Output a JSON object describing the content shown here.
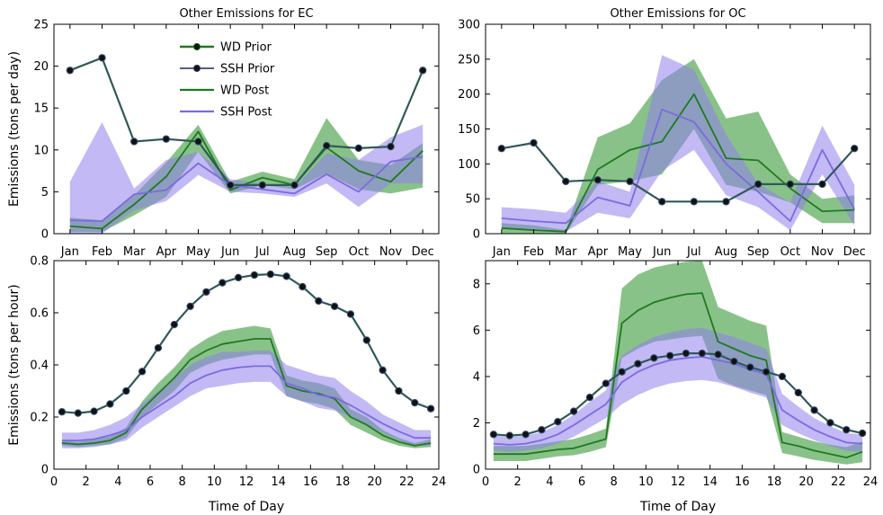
{
  "colors": {
    "wd": "#1e7a1e",
    "wd_band": "#3a9a3a",
    "ssh": "#7b6ae0",
    "ssh_band": "#8f80ec",
    "prior_line": "#3a4a7a",
    "marker": "#111111"
  },
  "legend": [
    "WD Prior",
    "SSH Prior",
    "WD Post",
    "SSH Post"
  ],
  "chart_data": [
    {
      "type": "line",
      "title": "Other Emissions for EC",
      "ylabel": "Emissions (tons per day)",
      "xlabel": "",
      "categories": [
        "Jan",
        "Feb",
        "Mar",
        "Apr",
        "May",
        "Jun",
        "Jul",
        "Aug",
        "Sep",
        "Oct",
        "Nov",
        "Dec"
      ],
      "x": [
        1,
        2,
        3,
        4,
        5,
        6,
        7,
        8,
        9,
        10,
        11,
        12
      ],
      "xlim": [
        0.5,
        12.5
      ],
      "ylim": [
        0,
        25
      ],
      "yticks": [
        0,
        5,
        10,
        15,
        20,
        25
      ],
      "legend": "top-left",
      "series": [
        {
          "name": "WD Prior",
          "values": [
            19.5,
            21.0,
            11.0,
            11.3,
            11.0,
            5.8,
            5.8,
            5.8,
            10.5,
            10.2,
            10.4,
            19.5
          ]
        },
        {
          "name": "SSH Prior",
          "values": [
            19.5,
            21.0,
            11.0,
            11.3,
            11.0,
            5.8,
            5.8,
            5.8,
            10.5,
            10.2,
            10.4,
            19.5
          ]
        },
        {
          "name": "WD Post",
          "values": [
            0.9,
            0.6,
            3.5,
            6.8,
            12.2,
            5.2,
            6.7,
            5.8,
            10.3,
            7.5,
            6.2,
            9.9
          ],
          "lower": [
            0.2,
            0.2,
            2.2,
            4.4,
            9.8,
            4.8,
            5.8,
            5.3,
            7.2,
            5.3,
            4.8,
            5.5
          ],
          "upper": [
            1.9,
            1.6,
            4.6,
            8.5,
            13.0,
            6.2,
            7.4,
            6.5,
            13.8,
            8.8,
            8.2,
            10.8
          ]
        },
        {
          "name": "SSH Post",
          "values": [
            1.6,
            1.5,
            4.7,
            5.2,
            8.4,
            5.8,
            5.3,
            4.8,
            7.1,
            5.0,
            8.6,
            9.2
          ],
          "lower": [
            0.0,
            0.0,
            2.8,
            3.9,
            7.0,
            5.0,
            4.8,
            4.4,
            6.0,
            3.2,
            6.0,
            6.0
          ],
          "upper": [
            6.2,
            13.3,
            5.4,
            8.8,
            9.8,
            6.5,
            6.0,
            5.5,
            9.6,
            8.8,
            11.5,
            13.0
          ]
        }
      ]
    },
    {
      "type": "line",
      "title": "Other Emissions for OC",
      "ylabel": "",
      "xlabel": "",
      "categories": [
        "Jan",
        "Feb",
        "Mar",
        "Apr",
        "May",
        "Jun",
        "Jul",
        "Aug",
        "Sep",
        "Oct",
        "Nov",
        "Dec"
      ],
      "x": [
        1,
        2,
        3,
        4,
        5,
        6,
        7,
        8,
        9,
        10,
        11,
        12
      ],
      "xlim": [
        0.5,
        12.5
      ],
      "ylim": [
        0,
        300
      ],
      "yticks": [
        0,
        50,
        100,
        150,
        200,
        250,
        300
      ],
      "series": [
        {
          "name": "WD Prior",
          "values": [
            122,
            130,
            75,
            77,
            75,
            46,
            46,
            46,
            71,
            71,
            71,
            122
          ]
        },
        {
          "name": "SSH Prior",
          "values": [
            122,
            130,
            75,
            77,
            75,
            46,
            46,
            46,
            71,
            71,
            71,
            122
          ]
        },
        {
          "name": "WD Post",
          "values": [
            8,
            5,
            3,
            92,
            120,
            132,
            200,
            108,
            105,
            65,
            32,
            34
          ],
          "lower": [
            0,
            0,
            0,
            70,
            75,
            85,
            150,
            70,
            60,
            45,
            15,
            15
          ],
          "upper": [
            15,
            12,
            5,
            138,
            158,
            220,
            250,
            165,
            175,
            85,
            50,
            55
          ]
        },
        {
          "name": "SSH Post",
          "values": [
            22,
            18,
            15,
            52,
            40,
            178,
            160,
            100,
            60,
            18,
            120,
            35
          ],
          "lower": [
            8,
            5,
            3,
            30,
            22,
            90,
            120,
            55,
            38,
            5,
            85,
            12
          ],
          "upper": [
            38,
            35,
            30,
            75,
            60,
            256,
            235,
            142,
            72,
            45,
            155,
            70
          ]
        }
      ]
    },
    {
      "type": "line",
      "title": "",
      "ylabel": "Emissions (tons per hour)",
      "xlabel": "Time of Day",
      "x": [
        0.5,
        1.5,
        2.5,
        3.5,
        4.5,
        5.5,
        6.5,
        7.5,
        8.5,
        9.5,
        10.5,
        11.5,
        12.5,
        13.5,
        14.5,
        15.5,
        16.5,
        17.5,
        18.5,
        19.5,
        20.5,
        21.5,
        22.5,
        23.5
      ],
      "xlim": [
        0,
        24
      ],
      "ylim": [
        0,
        0.8
      ],
      "xticks": [
        0,
        2,
        4,
        6,
        8,
        10,
        12,
        14,
        16,
        18,
        20,
        22,
        24
      ],
      "yticks": [
        0,
        0.2,
        0.4,
        0.6,
        0.8
      ],
      "series": [
        {
          "name": "WD Prior",
          "values": [
            0.22,
            0.215,
            0.222,
            0.25,
            0.3,
            0.375,
            0.465,
            0.555,
            0.625,
            0.68,
            0.715,
            0.735,
            0.745,
            0.748,
            0.74,
            0.7,
            0.645,
            0.625,
            0.595,
            0.495,
            0.38,
            0.3,
            0.255,
            0.232
          ]
        },
        {
          "name": "SSH Prior",
          "values": [
            0.22,
            0.215,
            0.222,
            0.25,
            0.3,
            0.375,
            0.465,
            0.555,
            0.625,
            0.68,
            0.715,
            0.735,
            0.745,
            0.748,
            0.74,
            0.7,
            0.645,
            0.625,
            0.595,
            0.495,
            0.38,
            0.3,
            0.255,
            0.232
          ]
        },
        {
          "name": "WD Post",
          "values": [
            0.1,
            0.095,
            0.1,
            0.11,
            0.14,
            0.23,
            0.29,
            0.35,
            0.42,
            0.455,
            0.48,
            0.49,
            0.5,
            0.5,
            0.32,
            0.3,
            0.29,
            0.27,
            0.2,
            0.17,
            0.13,
            0.105,
            0.09,
            0.1
          ],
          "lower": [
            0.09,
            0.085,
            0.09,
            0.095,
            0.12,
            0.2,
            0.25,
            0.3,
            0.37,
            0.4,
            0.42,
            0.43,
            0.44,
            0.44,
            0.28,
            0.26,
            0.25,
            0.23,
            0.17,
            0.14,
            0.11,
            0.09,
            0.08,
            0.085
          ],
          "upper": [
            0.11,
            0.105,
            0.115,
            0.125,
            0.16,
            0.26,
            0.33,
            0.39,
            0.46,
            0.5,
            0.53,
            0.54,
            0.55,
            0.54,
            0.36,
            0.34,
            0.33,
            0.31,
            0.23,
            0.2,
            0.15,
            0.12,
            0.1,
            0.115
          ]
        },
        {
          "name": "SSH Post",
          "values": [
            0.11,
            0.11,
            0.115,
            0.13,
            0.15,
            0.2,
            0.24,
            0.28,
            0.33,
            0.36,
            0.38,
            0.39,
            0.395,
            0.395,
            0.33,
            0.31,
            0.285,
            0.275,
            0.245,
            0.21,
            0.175,
            0.145,
            0.12,
            0.12
          ],
          "lower": [
            0.08,
            0.08,
            0.085,
            0.095,
            0.11,
            0.16,
            0.2,
            0.24,
            0.28,
            0.31,
            0.32,
            0.33,
            0.335,
            0.335,
            0.28,
            0.26,
            0.235,
            0.225,
            0.2,
            0.17,
            0.14,
            0.11,
            0.09,
            0.09
          ],
          "upper": [
            0.14,
            0.14,
            0.15,
            0.17,
            0.2,
            0.25,
            0.3,
            0.35,
            0.4,
            0.43,
            0.45,
            0.45,
            0.455,
            0.455,
            0.4,
            0.38,
            0.36,
            0.35,
            0.3,
            0.26,
            0.21,
            0.18,
            0.15,
            0.15
          ]
        }
      ]
    },
    {
      "type": "line",
      "title": "",
      "ylabel": "",
      "xlabel": "Time of Day",
      "x": [
        0.5,
        1.5,
        2.5,
        3.5,
        4.5,
        5.5,
        6.5,
        7.5,
        8.5,
        9.5,
        10.5,
        11.5,
        12.5,
        13.5,
        14.5,
        15.5,
        16.5,
        17.5,
        18.5,
        19.5,
        20.5,
        21.5,
        22.5,
        23.5
      ],
      "xlim": [
        0,
        24
      ],
      "ylim": [
        0,
        9
      ],
      "xticks": [
        0,
        2,
        4,
        6,
        8,
        10,
        12,
        14,
        16,
        18,
        20,
        22,
        24
      ],
      "yticks": [
        0,
        2,
        4,
        6,
        8
      ],
      "series": [
        {
          "name": "WD Prior",
          "values": [
            1.5,
            1.45,
            1.5,
            1.7,
            2.05,
            2.5,
            3.1,
            3.7,
            4.2,
            4.55,
            4.8,
            4.9,
            5.0,
            5.0,
            4.95,
            4.65,
            4.4,
            4.2,
            4.0,
            3.3,
            2.55,
            2.0,
            1.7,
            1.55
          ]
        },
        {
          "name": "SSH Prior",
          "values": [
            1.5,
            1.45,
            1.5,
            1.7,
            2.05,
            2.5,
            3.1,
            3.7,
            4.2,
            4.55,
            4.8,
            4.9,
            5.0,
            5.0,
            4.95,
            4.65,
            4.4,
            4.2,
            4.0,
            3.3,
            2.55,
            2.0,
            1.7,
            1.55
          ]
        },
        {
          "name": "WD Post",
          "values": [
            0.65,
            0.65,
            0.65,
            0.75,
            0.85,
            0.9,
            1.1,
            1.3,
            6.3,
            6.85,
            7.2,
            7.4,
            7.55,
            7.6,
            5.5,
            5.2,
            4.9,
            4.7,
            1.15,
            1.0,
            0.8,
            0.65,
            0.5,
            0.75
          ],
          "lower": [
            0.35,
            0.35,
            0.35,
            0.45,
            0.55,
            0.6,
            0.75,
            0.95,
            4.8,
            5.2,
            5.5,
            5.6,
            5.7,
            5.75,
            3.9,
            3.6,
            3.4,
            3.2,
            0.7,
            0.55,
            0.4,
            0.3,
            0.2,
            0.3
          ],
          "upper": [
            1.0,
            1.0,
            1.0,
            1.1,
            1.2,
            1.3,
            1.5,
            1.75,
            7.8,
            8.4,
            8.7,
            8.85,
            8.95,
            9.0,
            7.0,
            6.7,
            6.4,
            6.2,
            1.6,
            1.4,
            1.2,
            1.05,
            0.95,
            1.2
          ]
        },
        {
          "name": "SSH Post",
          "values": [
            1.1,
            1.05,
            1.1,
            1.25,
            1.5,
            1.9,
            2.35,
            2.8,
            3.75,
            4.2,
            4.5,
            4.7,
            4.8,
            4.85,
            4.7,
            4.55,
            4.3,
            4.1,
            2.55,
            2.1,
            1.7,
            1.4,
            1.15,
            1.1
          ],
          "lower": [
            0.8,
            0.75,
            0.8,
            0.9,
            1.1,
            1.4,
            1.8,
            2.2,
            2.8,
            3.2,
            3.5,
            3.7,
            3.8,
            3.85,
            3.75,
            3.55,
            3.3,
            3.1,
            1.9,
            1.55,
            1.25,
            1.0,
            0.8,
            0.75
          ],
          "upper": [
            1.45,
            1.4,
            1.45,
            1.6,
            1.9,
            2.35,
            2.9,
            3.4,
            4.9,
            5.35,
            5.7,
            5.9,
            6.05,
            6.1,
            5.9,
            5.7,
            5.45,
            5.2,
            3.25,
            2.7,
            2.2,
            1.85,
            1.55,
            1.5
          ]
        }
      ]
    }
  ]
}
